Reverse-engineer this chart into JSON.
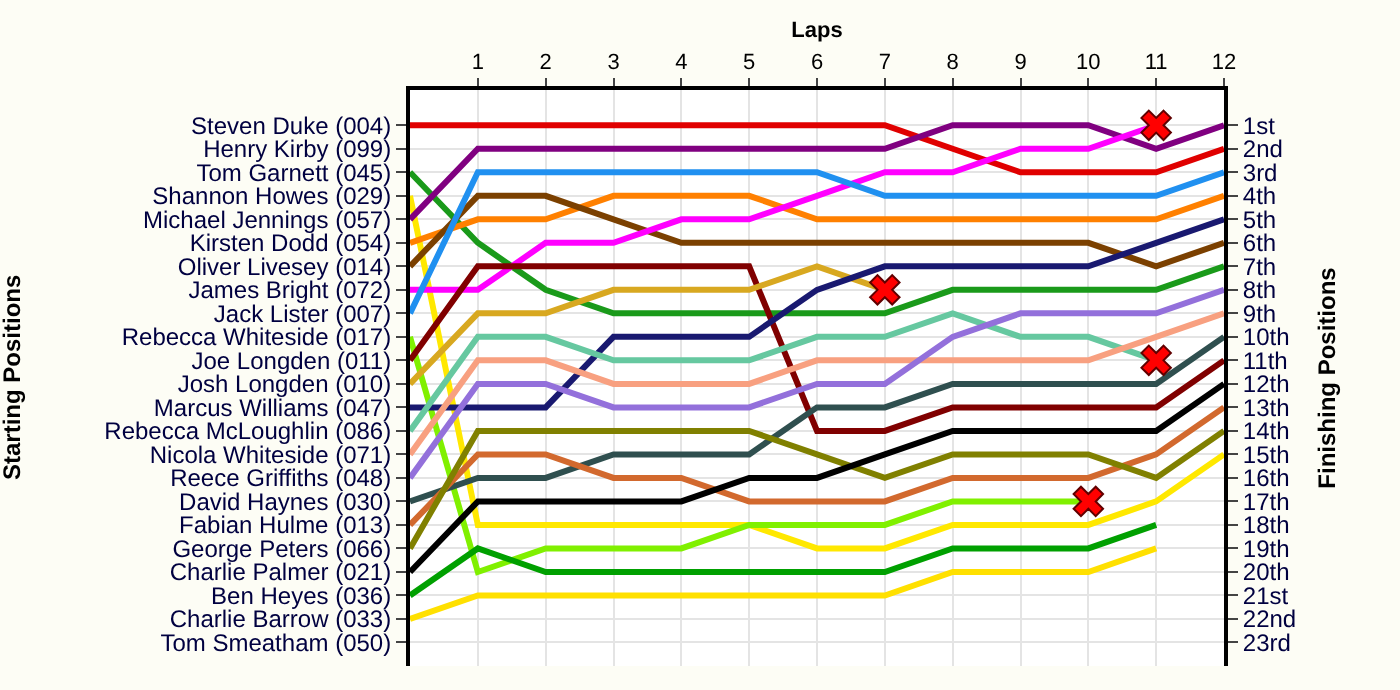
{
  "chart_data": {
    "type": "line",
    "xlabel": "Laps",
    "annotations": [
      "Starting Positions"
    ],
    "y2label": "Finishing Positions",
    "x": [
      0,
      1,
      2,
      3,
      4,
      5,
      6,
      7,
      8,
      9,
      10,
      11,
      12
    ],
    "xlim": [
      0,
      12
    ],
    "xticks": [
      1,
      2,
      3,
      4,
      5,
      6,
      7,
      8,
      9,
      10,
      11,
      12
    ],
    "y_categories": [
      "Steven Duke (004)",
      "Henry Kirby (099)",
      "Tom Garnett (045)",
      "Shannon Howes (029)",
      "Michael Jennings (057)",
      "Kirsten Dodd (054)",
      "Oliver Livesey (014)",
      "James Bright (072)",
      "Jack Lister (007)",
      "Rebecca Whiteside (017)",
      "Joe Longden (011)",
      "Josh Longden (010)",
      "Marcus Williams (047)",
      "Rebecca McLoughlin (086)",
      "Nicola Whiteside (071)",
      "Reece Griffiths (048)",
      "David Haynes (030)",
      "Fabian Hulme (013)",
      "George Peters (066)",
      "Charlie Palmer (021)",
      "Ben Heyes (036)",
      "Charlie Barrow (033)",
      "Tom Smeatham (050)"
    ],
    "y2lim": [
      24,
      -0.5
    ],
    "y2ticks": [
      {
        "value": 1,
        "label": "1st"
      },
      {
        "value": 2,
        "label": "2nd"
      },
      {
        "value": 3,
        "label": "3rd"
      },
      {
        "value": 4,
        "label": "4th"
      },
      {
        "value": 5,
        "label": "5th"
      },
      {
        "value": 6,
        "label": "6th"
      },
      {
        "value": 7,
        "label": "7th"
      },
      {
        "value": 8,
        "label": "8th"
      },
      {
        "value": 9,
        "label": "9th"
      },
      {
        "value": 10,
        "label": "10th"
      },
      {
        "value": 11,
        "label": "11th"
      },
      {
        "value": 12,
        "label": "12th"
      },
      {
        "value": 13,
        "label": "13th"
      },
      {
        "value": 14,
        "label": "14th"
      },
      {
        "value": 15,
        "label": "15th"
      },
      {
        "value": 16,
        "label": "16th"
      },
      {
        "value": 17,
        "label": "17th"
      },
      {
        "value": 18,
        "label": "18th"
      },
      {
        "value": 19,
        "label": "19th"
      },
      {
        "value": 20,
        "label": "20th"
      },
      {
        "value": 21,
        "label": "21st"
      },
      {
        "value": 22,
        "label": "22nd"
      },
      {
        "value": 23,
        "label": "23rd"
      }
    ],
    "grid": true,
    "marker": "none",
    "line_style": "solid",
    "series": [
      {
        "color": "#e00000",
        "axis": "y2",
        "values": [
          1,
          1,
          1,
          1,
          1,
          1,
          1,
          1,
          2,
          3,
          3,
          3,
          2
        ]
      },
      {
        "color": "#1a9a1a",
        "axis": "y2",
        "values": [
          3,
          6,
          8,
          9,
          9,
          9,
          9,
          9,
          8,
          8,
          8,
          8,
          7
        ]
      },
      {
        "color": "#ffe800",
        "axis": "y2",
        "values": [
          4,
          18,
          18,
          18,
          18,
          18,
          19,
          19,
          18,
          18,
          18,
          17,
          15
        ]
      },
      {
        "color": "#800080",
        "axis": "y2",
        "values": [
          5,
          2,
          2,
          2,
          2,
          2,
          2,
          2,
          1,
          1,
          1,
          2,
          1
        ]
      },
      {
        "color": "#ff8000",
        "axis": "y2",
        "values": [
          6,
          5,
          5,
          4,
          4,
          4,
          5,
          5,
          5,
          5,
          5,
          5,
          4
        ]
      },
      {
        "color": "#7b4000",
        "axis": "y2",
        "values": [
          7,
          4,
          4,
          5,
          6,
          6,
          6,
          6,
          6,
          6,
          6,
          7,
          6
        ]
      },
      {
        "color": "#ff00ff",
        "axis": "y2",
        "values": [
          8,
          8,
          6,
          6,
          5,
          5,
          4,
          3,
          3,
          2,
          2,
          1,
          null
        ]
      },
      {
        "color": "#2090f0",
        "axis": "y2",
        "values": [
          9,
          3,
          3,
          3,
          3,
          3,
          3,
          4,
          4,
          4,
          4,
          4,
          3
        ]
      },
      {
        "color": "#80f000",
        "axis": "y2",
        "values": [
          10,
          20,
          19,
          19,
          19,
          18,
          18,
          18,
          17,
          17,
          17,
          null,
          null
        ]
      },
      {
        "color": "#800000",
        "axis": "y2",
        "values": [
          11,
          7,
          7,
          7,
          7,
          7,
          14,
          14,
          13,
          13,
          13,
          13,
          11
        ]
      },
      {
        "color": "#d8a820",
        "axis": "y2",
        "values": [
          12,
          9,
          9,
          8,
          8,
          8,
          7,
          8,
          null,
          null,
          null,
          null,
          null
        ]
      },
      {
        "color": "#191970",
        "axis": "y2",
        "values": [
          13,
          13,
          13,
          10,
          10,
          10,
          8,
          7,
          7,
          7,
          7,
          6,
          5
        ]
      },
      {
        "color": "#66c8a0",
        "axis": "y2",
        "values": [
          14,
          10,
          10,
          11,
          11,
          11,
          10,
          10,
          9,
          10,
          10,
          11,
          null
        ]
      },
      {
        "color": "#f8a080",
        "axis": "y2",
        "values": [
          15,
          11,
          11,
          12,
          12,
          12,
          11,
          11,
          11,
          11,
          11,
          10,
          9
        ]
      },
      {
        "color": "#9370db",
        "axis": "y2",
        "values": [
          16,
          12,
          12,
          13,
          13,
          13,
          12,
          12,
          10,
          9,
          9,
          9,
          8
        ]
      },
      {
        "color": "#2f4f4f",
        "axis": "y2",
        "values": [
          17,
          16,
          16,
          15,
          15,
          15,
          13,
          13,
          12,
          12,
          12,
          12,
          10
        ]
      },
      {
        "color": "#d2692e",
        "axis": "y2",
        "values": [
          18,
          15,
          15,
          16,
          16,
          17,
          17,
          17,
          16,
          16,
          16,
          15,
          13
        ]
      },
      {
        "color": "#808000",
        "axis": "y2",
        "values": [
          19,
          14,
          14,
          14,
          14,
          14,
          15,
          16,
          15,
          15,
          15,
          16,
          14
        ]
      },
      {
        "color": "#000000",
        "axis": "y2",
        "values": [
          20,
          17,
          17,
          17,
          17,
          16,
          16,
          15,
          14,
          14,
          14,
          14,
          12
        ]
      },
      {
        "color": "#00a000",
        "axis": "y2",
        "values": [
          21,
          19,
          20,
          20,
          20,
          20,
          20,
          20,
          19,
          19,
          19,
          18,
          null
        ]
      },
      {
        "color": "#ffe000",
        "axis": "y2",
        "values": [
          22,
          21,
          21,
          21,
          21,
          21,
          21,
          21,
          20,
          20,
          20,
          19,
          null
        ]
      },
      {
        "type": "scatter",
        "axis": "y2",
        "color": "#ff0000",
        "marker": "cross",
        "x": [
          7,
          10,
          11,
          11
        ],
        "values": [
          8,
          17,
          1,
          11
        ]
      }
    ]
  }
}
